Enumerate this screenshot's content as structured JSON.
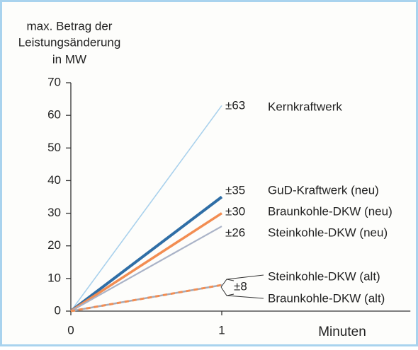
{
  "chart_data": {
    "type": "line",
    "ylabel": [
      "max. Betrag der",
      "Leistungsänderung",
      "in MW"
    ],
    "xlabel": "Minuten",
    "x": [
      0,
      1
    ],
    "xlim": [
      0,
      2.25
    ],
    "xticks": [
      0,
      1
    ],
    "ylim": [
      0,
      70
    ],
    "yticks": [
      0,
      10,
      20,
      30,
      40,
      50,
      60,
      70
    ],
    "series": [
      {
        "name": "Kernkraftwerk",
        "color": "#a9d1ec",
        "values": [
          0,
          63
        ],
        "value_labels": [
          null,
          "±63"
        ]
      },
      {
        "name": "GuD-Kraftwerk (neu)",
        "color": "#2f6ea6",
        "values": [
          0,
          35
        ],
        "value_labels": [
          null,
          "±35"
        ]
      },
      {
        "name": "Braunkohle-DKW (neu)",
        "color": "#f28d52",
        "values": [
          0,
          30
        ],
        "value_labels": [
          null,
          "±30"
        ]
      },
      {
        "name": "Steinkohle-DKW (neu)",
        "color": "#aab3c7",
        "values": [
          0,
          26
        ],
        "value_labels": [
          null,
          "±26"
        ]
      },
      {
        "name": "Steinkohle-DKW (alt)",
        "color": "#a7a9b5",
        "values": [
          0,
          8
        ],
        "value_labels": [
          null,
          "±8"
        ]
      },
      {
        "name": "Braunkohle-DKW (alt)",
        "color": "#f28d52",
        "values": [
          0,
          8
        ],
        "dashed": true
      }
    ]
  }
}
